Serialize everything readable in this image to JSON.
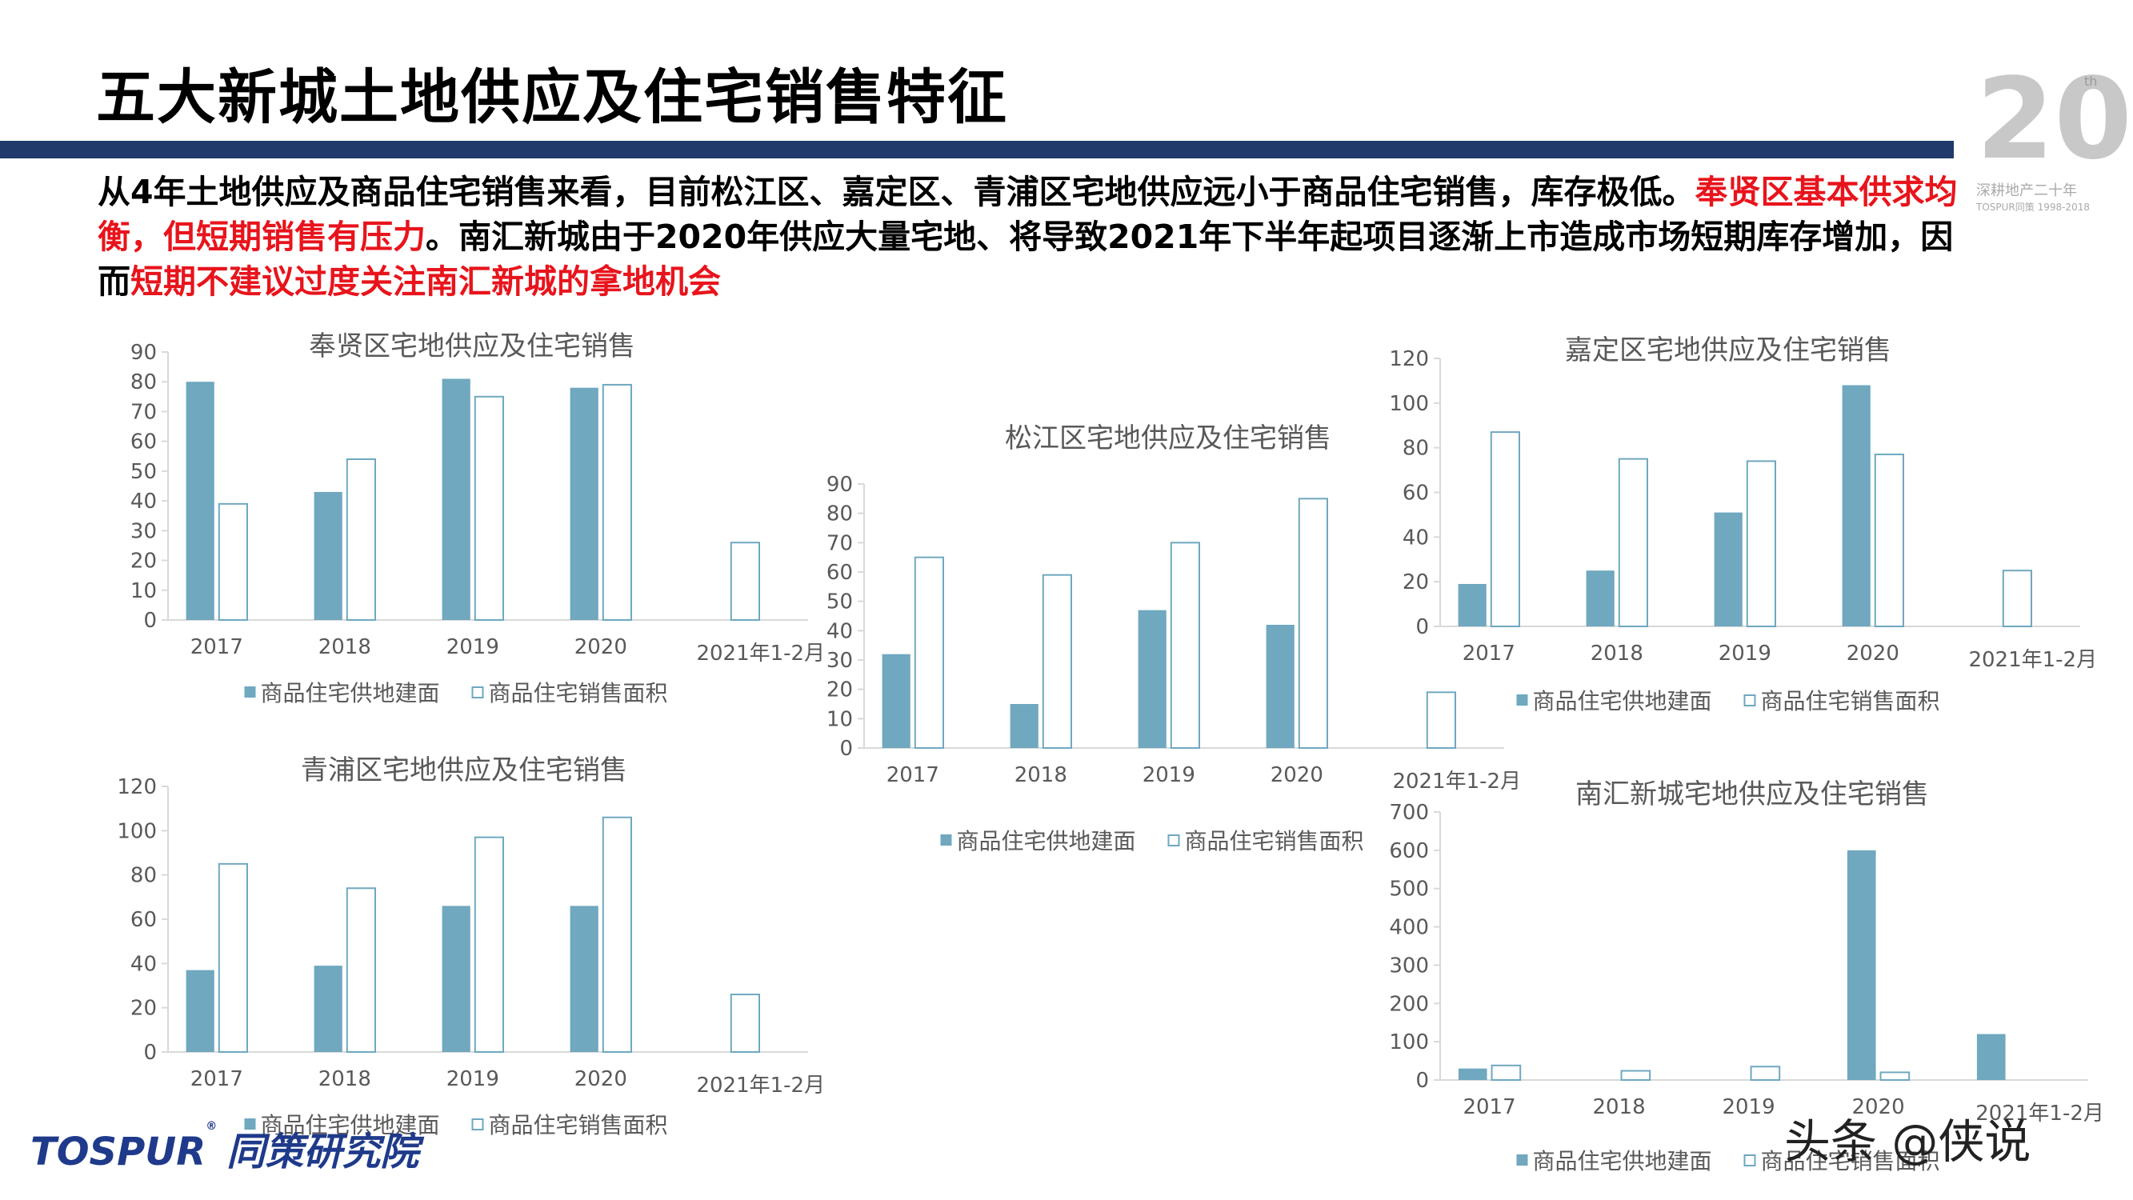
{
  "page": {
    "title": "五大新城土地供应及住宅销售特征",
    "logo": {
      "number": "20",
      "sup": "th",
      "caption": "深耕地产二十年",
      "caption2": "TOSPUR同策 1998-2018"
    },
    "summary": {
      "part1": "从4年土地供应及商品住宅销售来看，目前松江区、嘉定区、青浦区宅地供应远小于商品住宅销售，库存极低。",
      "part2_red": "奉贤区基本供求均衡，但短期销售有压力",
      "part3": "。南汇新城由于2020年供应大量宅地、将导致2021年下半年起项目逐渐上市造成市场短期库存增加，因而",
      "part4_red": "短期不建议过度关注南汇新城的拿地机会"
    },
    "footer": {
      "brand": "TOSPUR",
      "reg": "®",
      "brand_cn": "同策研究院"
    },
    "watermark": "头条 @侠说"
  },
  "colors": {
    "supply": "#6fa8bf",
    "sales_border": "#6fa8bf",
    "axis": "#d9d9d9",
    "text": "#595959",
    "red": "#e8141c",
    "bar": "#1f3a6b"
  },
  "legend": {
    "supply": "商品住宅供地建面",
    "sales": "商品住宅销售面积"
  },
  "chart_data": [
    {
      "id": "fengxian",
      "type": "bar",
      "title": "奉贤区宅地供应及住宅销售",
      "categories": [
        "2017",
        "2018",
        "2019",
        "2020",
        "2021年1-2月"
      ],
      "series": [
        {
          "name": "商品住宅供地建面",
          "values": [
            80,
            43,
            81,
            78,
            null
          ]
        },
        {
          "name": "商品住宅销售面积",
          "values": [
            39,
            54,
            75,
            79,
            26
          ]
        }
      ],
      "ylim": [
        0,
        90
      ],
      "yticks": [
        "0",
        "10",
        "20",
        "30",
        "40",
        "50",
        "60",
        "70",
        "80",
        "90"
      ]
    },
    {
      "id": "songjiang",
      "type": "bar",
      "title": "松江区宅地供应及住宅销售",
      "categories": [
        "2017",
        "2018",
        "2019",
        "2020",
        "2021年1-2月"
      ],
      "series": [
        {
          "name": "商品住宅供地建面",
          "values": [
            32,
            15,
            47,
            42,
            null
          ]
        },
        {
          "name": "商品住宅销售面积",
          "values": [
            65,
            59,
            70,
            85,
            19
          ]
        }
      ],
      "ylim": [
        0,
        90
      ],
      "yticks": [
        "0",
        "10",
        "20",
        "30",
        "40",
        "50",
        "60",
        "70",
        "80",
        "90"
      ]
    },
    {
      "id": "jiading",
      "type": "bar",
      "title": "嘉定区宅地供应及住宅销售",
      "categories": [
        "2017",
        "2018",
        "2019",
        "2020",
        "2021年1-2月"
      ],
      "series": [
        {
          "name": "商品住宅供地建面",
          "values": [
            19,
            25,
            51,
            108,
            null
          ]
        },
        {
          "name": "商品住宅销售面积",
          "values": [
            87,
            75,
            74,
            77,
            25
          ]
        }
      ],
      "ylim": [
        0,
        120
      ],
      "yticks": [
        "0",
        "20",
        "40",
        "60",
        "80",
        "100",
        "120"
      ]
    },
    {
      "id": "qingpu",
      "type": "bar",
      "title": "青浦区宅地供应及住宅销售",
      "categories": [
        "2017",
        "2018",
        "2019",
        "2020",
        "2021年1-2月"
      ],
      "series": [
        {
          "name": "商品住宅供地建面",
          "values": [
            37,
            39,
            66,
            66,
            null
          ]
        },
        {
          "name": "商品住宅销售面积",
          "values": [
            85,
            74,
            97,
            106,
            26
          ]
        }
      ],
      "ylim": [
        0,
        120
      ],
      "yticks": [
        "0",
        "20",
        "40",
        "60",
        "80",
        "100",
        "120"
      ]
    },
    {
      "id": "nanhui",
      "type": "bar",
      "title": "南汇新城宅地供应及住宅销售",
      "categories": [
        "2017",
        "2018",
        "2019",
        "2020",
        "2021年1-2月"
      ],
      "series": [
        {
          "name": "商品住宅供地建面",
          "values": [
            30,
            0,
            0,
            600,
            120
          ]
        },
        {
          "name": "商品住宅销售面积",
          "values": [
            38,
            24,
            35,
            20,
            0
          ]
        }
      ],
      "ylim": [
        0,
        700
      ],
      "yticks": [
        "0",
        "100",
        "200",
        "300",
        "400",
        "500",
        "600",
        "700"
      ]
    }
  ]
}
